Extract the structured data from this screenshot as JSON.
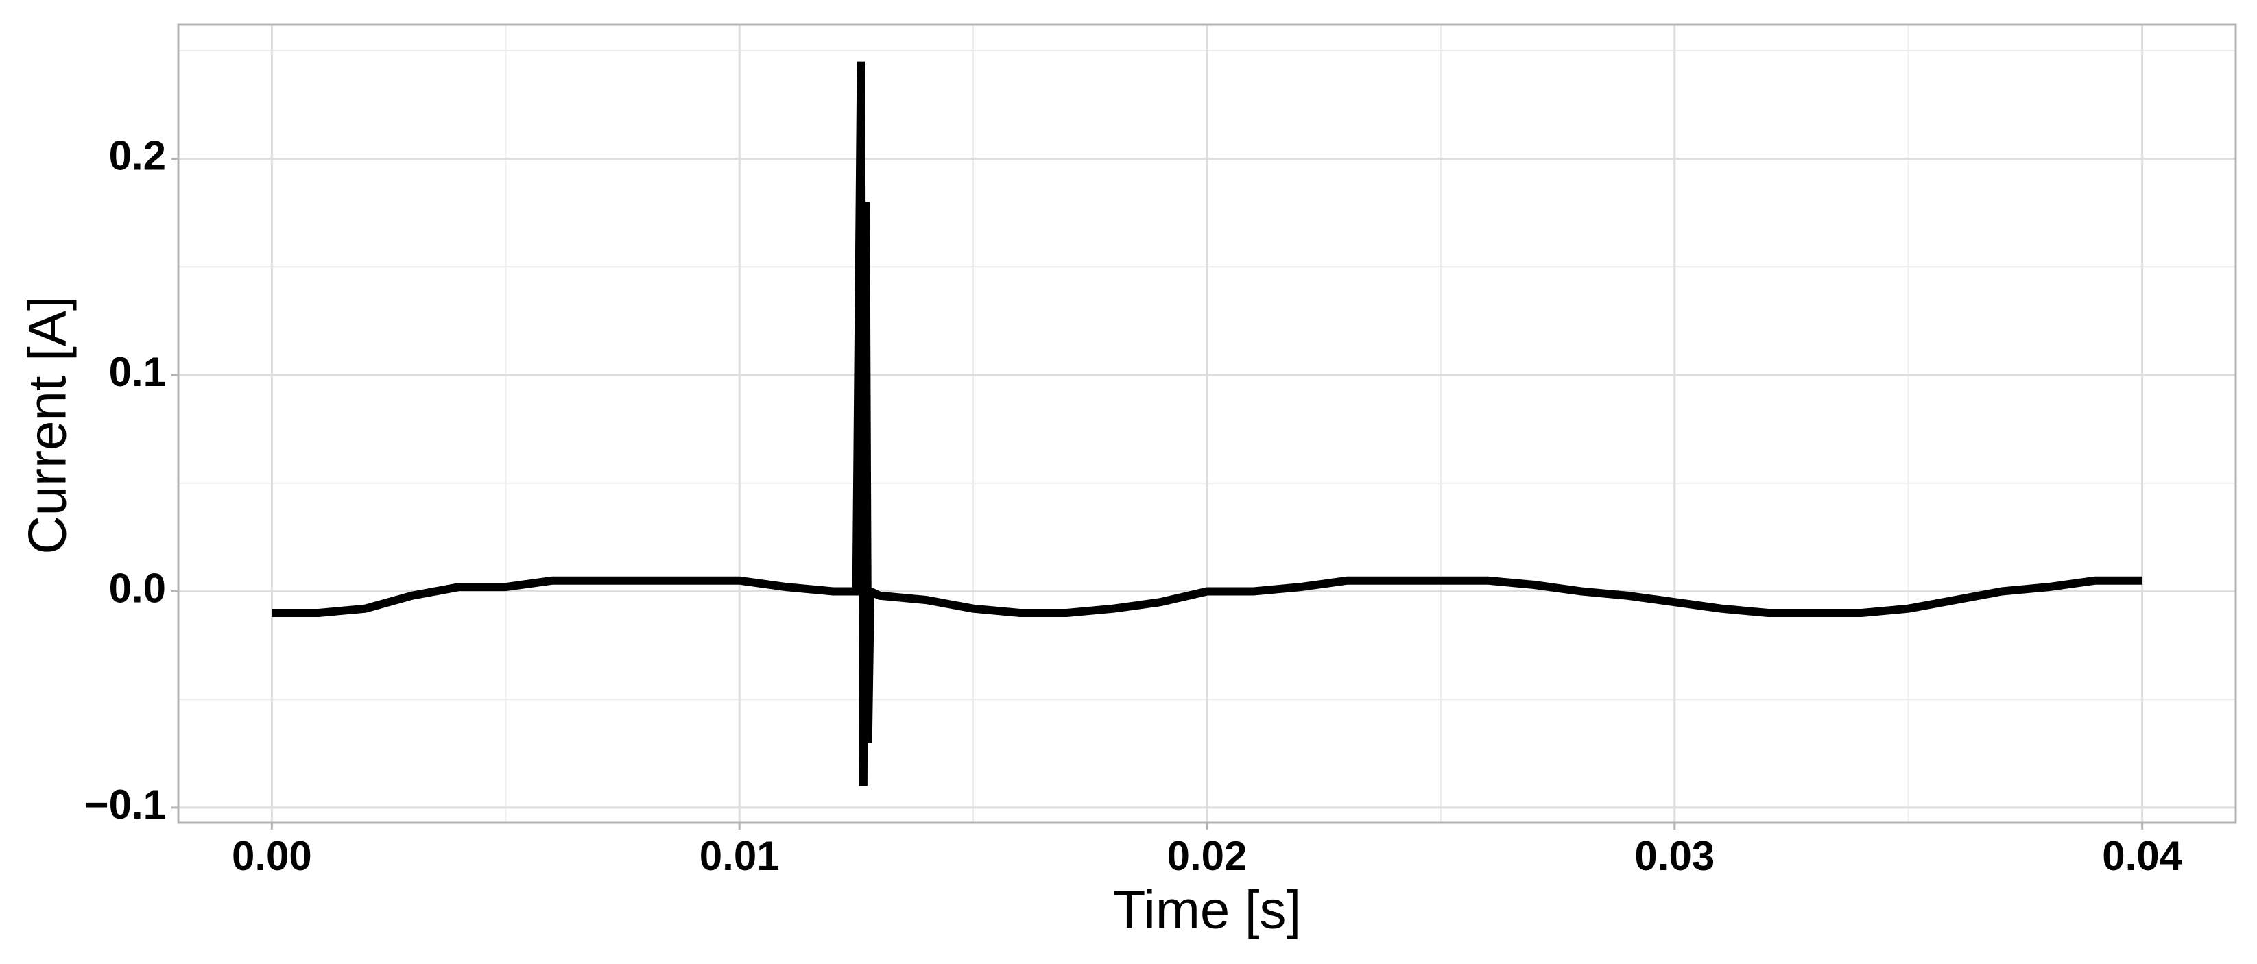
{
  "chart_data": {
    "type": "line",
    "x_label": "Time [s]",
    "y_label": "Current [A]",
    "x": [
      0,
      0.001,
      0.002,
      0.003,
      0.004,
      0.005,
      0.006,
      0.007,
      0.008,
      0.009,
      0.01,
      0.011,
      0.012,
      0.0125,
      0.0126,
      0.01265,
      0.0127,
      0.01275,
      0.0128,
      0.013,
      0.014,
      0.015,
      0.016,
      0.017,
      0.018,
      0.019,
      0.02,
      0.021,
      0.022,
      0.023,
      0.024,
      0.025,
      0.026,
      0.027,
      0.028,
      0.029,
      0.03,
      0.031,
      0.032,
      0.033,
      0.034,
      0.035,
      0.036,
      0.037,
      0.038,
      0.039,
      0.04
    ],
    "values": [
      -0.01,
      -0.01,
      -0.008,
      -0.002,
      0.002,
      0.002,
      0.005,
      0.005,
      0.005,
      0.005,
      0.005,
      0.002,
      0,
      0,
      0.245,
      -0.09,
      0.18,
      -0.07,
      0,
      -0.002,
      -0.004,
      -0.008,
      -0.01,
      -0.01,
      -0.008,
      -0.005,
      0,
      0,
      0.002,
      0.005,
      0.005,
      0.005,
      0.005,
      0.003,
      0,
      -0.002,
      -0.005,
      -0.008,
      -0.01,
      -0.01,
      -0.01,
      -0.008,
      -0.004,
      0,
      0.002,
      0.005,
      0.005
    ],
    "color": "#000000",
    "xlim": [
      -0.002,
      0.042
    ],
    "xticks": [
      {
        "value": 0,
        "label": "0.00"
      },
      0.01,
      0.02,
      0.03,
      0.04
    ],
    "ylim": [
      -0.107,
      0.262
    ],
    "yticks": [
      {
        "value": -0.1,
        "label": "−0.1"
      },
      {
        "value": 0,
        "label": "0.0"
      },
      0.1,
      0.2
    ],
    "grid": true
  }
}
